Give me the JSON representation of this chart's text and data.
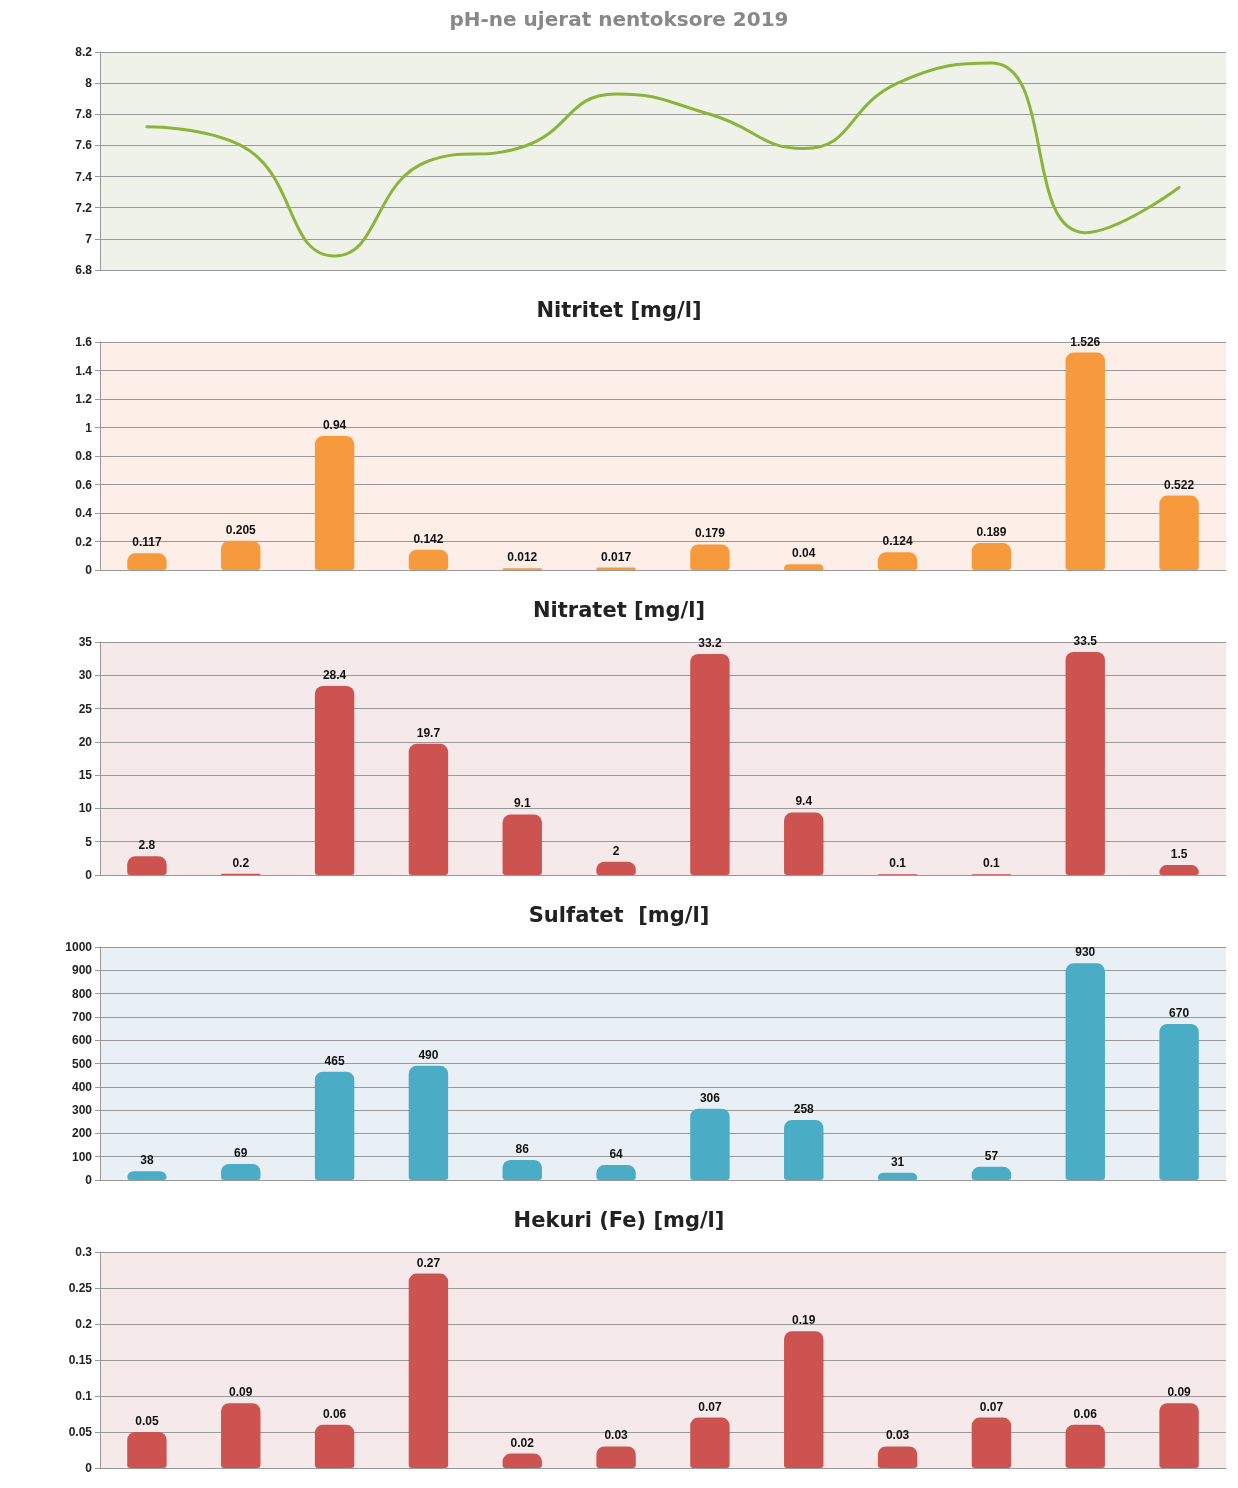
{
  "chart_data": [
    {
      "type": "line",
      "title": "pH-ne ujerat nentoksore 2019",
      "categories": [
        null,
        null,
        null,
        null,
        null,
        null,
        null,
        null,
        null,
        null,
        null,
        null
      ],
      "series": [
        {
          "color": "#8cb43c",
          "values": [
            7.72,
            7.6,
            6.89,
            7.5,
            7.59,
            7.93,
            7.8,
            7.58,
            8.0,
            8.13,
            7.04,
            7.33
          ]
        }
      ],
      "ylim": [
        6.8,
        8.2
      ],
      "yticks": [
        6.8,
        7,
        7.2,
        7.4,
        7.6,
        7.8,
        8,
        8.2
      ],
      "grid": "y",
      "marker": "none",
      "line_style": "solid",
      "tick_labels": "y"
    },
    {
      "type": "bar",
      "title": "Nitritet [mg/l]",
      "categories": [
        null,
        null,
        null,
        null,
        null,
        null,
        null,
        null,
        null,
        null,
        null,
        null
      ],
      "values": [
        0.117,
        0.205,
        0.94,
        0.142,
        0.012,
        0.017,
        0.179,
        0.04,
        0.124,
        0.189,
        1.526,
        0.522
      ],
      "color": "#f79a3e",
      "ylim": [
        0,
        1.6
      ],
      "yticks": [
        0,
        0.2,
        0.4,
        0.6,
        0.8,
        1,
        1.2,
        1.4,
        1.6
      ],
      "grid": "y",
      "data_labels": true,
      "tick_labels": "y"
    },
    {
      "type": "bar",
      "title": "Nitratet [mg/l]",
      "categories": [
        null,
        null,
        null,
        null,
        null,
        null,
        null,
        null,
        null,
        null,
        null,
        null
      ],
      "values": [
        2.8,
        0.2,
        28.4,
        19.7,
        9.1,
        2,
        33.2,
        9.4,
        0.1,
        0.1,
        33.5,
        1.5
      ],
      "color": "#cd5350",
      "ylim": [
        0,
        35
      ],
      "yticks": [
        0,
        5,
        10,
        15,
        20,
        25,
        30,
        35
      ],
      "grid": "y",
      "data_labels": true,
      "tick_labels": "y"
    },
    {
      "type": "bar",
      "title": "Sulfatet  [mg/l]",
      "categories": [
        null,
        null,
        null,
        null,
        null,
        null,
        null,
        null,
        null,
        null,
        null,
        null
      ],
      "values": [
        38,
        69,
        465,
        490,
        86,
        64,
        306,
        258,
        31,
        57,
        930,
        670
      ],
      "color": "#4bacc6",
      "ylim": [
        0,
        1000
      ],
      "yticks": [
        0,
        100,
        200,
        300,
        400,
        500,
        600,
        700,
        800,
        900,
        1000
      ],
      "grid": "y",
      "data_labels": true,
      "tick_labels": "y"
    },
    {
      "type": "bar",
      "title": "Hekuri (Fe) [mg/l]",
      "categories": [
        null,
        null,
        null,
        null,
        null,
        null,
        null,
        null,
        null,
        null,
        null,
        null
      ],
      "values": [
        0.05,
        0.09,
        0.06,
        0.27,
        0.02,
        0.03,
        0.07,
        0.19,
        0.03,
        0.07,
        0.06,
        0.09
      ],
      "color": "#cd5350",
      "ylim": [
        0,
        0.3
      ],
      "yticks": [
        0,
        0.05,
        0.1,
        0.15,
        0.2,
        0.25,
        0.3
      ],
      "grid": "y",
      "data_labels": true,
      "tick_labels": "y"
    }
  ]
}
